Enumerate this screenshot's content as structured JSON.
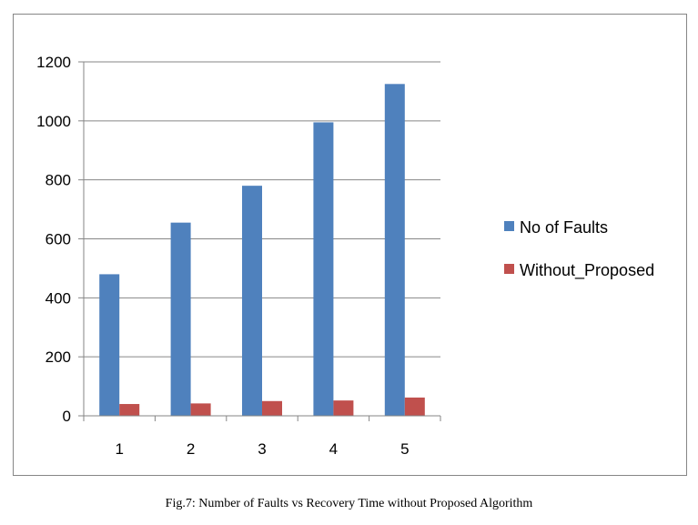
{
  "caption": "Fig.7: Number of Faults vs Recovery Time without Proposed Algorithm",
  "chart_data": {
    "type": "bar",
    "title": "",
    "xlabel": "",
    "ylabel": "",
    "categories": [
      "1",
      "2",
      "3",
      "4",
      "5"
    ],
    "series": [
      {
        "name": "No of Faults",
        "color": "#4F81BD",
        "values": [
          480,
          655,
          780,
          995,
          1125
        ]
      },
      {
        "name": "Without_Proposed",
        "color": "#C0504D",
        "values": [
          40,
          42,
          50,
          52,
          62
        ]
      }
    ],
    "ylim": [
      0,
      1200
    ],
    "yticks": [
      0,
      200,
      400,
      600,
      800,
      1000,
      1200
    ],
    "grid": true,
    "legend_position": "right"
  }
}
